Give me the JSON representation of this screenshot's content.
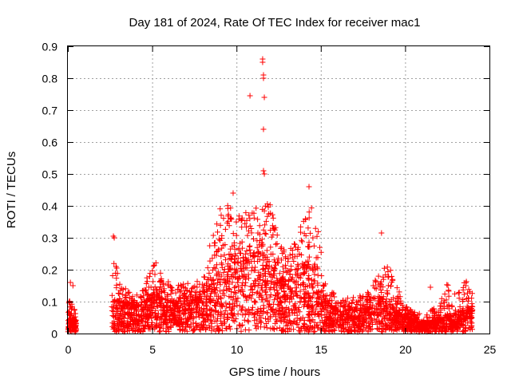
{
  "chart_data": {
    "type": "scatter",
    "title": "Day 181 of 2024, Rate Of TEC Index for receiver mac1",
    "xlabel": "GPS time / hours",
    "ylabel": "ROTI / TECUs",
    "xlim": [
      0,
      25
    ],
    "ylim": [
      0,
      0.9
    ],
    "xticks": [
      "0",
      "5",
      "10",
      "15",
      "20",
      "25"
    ],
    "yticks": [
      "0",
      "0.1",
      "0.2",
      "0.3",
      "0.4",
      "0.5",
      "0.6",
      "0.7",
      "0.8",
      "0.9"
    ],
    "grid": true,
    "marker": "plus",
    "series_color": "#ff0000",
    "notable_points": [
      {
        "x": 11.55,
        "y": 0.86
      },
      {
        "x": 11.55,
        "y": 0.85
      },
      {
        "x": 11.6,
        "y": 0.81
      },
      {
        "x": 11.6,
        "y": 0.8
      },
      {
        "x": 11.65,
        "y": 0.74
      },
      {
        "x": 10.8,
        "y": 0.745
      },
      {
        "x": 11.6,
        "y": 0.64
      },
      {
        "x": 11.6,
        "y": 0.51
      },
      {
        "x": 11.65,
        "y": 0.5
      },
      {
        "x": 14.3,
        "y": 0.46
      },
      {
        "x": 9.8,
        "y": 0.44
      },
      {
        "x": 18.6,
        "y": 0.315
      },
      {
        "x": 2.7,
        "y": 0.305
      },
      {
        "x": 2.75,
        "y": 0.3
      },
      {
        "x": 0.15,
        "y": 0.16
      },
      {
        "x": 0.3,
        "y": 0.15
      },
      {
        "x": 21.5,
        "y": 0.145
      }
    ],
    "envelope": {
      "x": [
        0,
        0.1,
        0.2,
        0.4,
        0.5,
        2.6,
        2.7,
        3.0,
        3.5,
        4.0,
        4.5,
        5.0,
        5.5,
        6.0,
        6.5,
        7.0,
        7.5,
        8.0,
        8.5,
        9.0,
        9.5,
        10.0,
        10.5,
        11.0,
        11.5,
        12.0,
        12.5,
        13.0,
        13.5,
        14.0,
        14.5,
        15.0,
        15.5,
        16.0,
        16.5,
        17.0,
        17.5,
        18.0,
        18.5,
        19.0,
        19.5,
        20.0,
        20.5,
        21.0,
        21.5,
        22.0,
        22.5,
        23.0,
        23.5,
        24.0
      ],
      "max": [
        0.06,
        0.12,
        0.1,
        0.08,
        0.05,
        0.12,
        0.3,
        0.17,
        0.14,
        0.12,
        0.14,
        0.25,
        0.2,
        0.17,
        0.15,
        0.17,
        0.16,
        0.19,
        0.33,
        0.4,
        0.42,
        0.36,
        0.42,
        0.39,
        0.4,
        0.41,
        0.3,
        0.26,
        0.3,
        0.36,
        0.41,
        0.28,
        0.15,
        0.11,
        0.11,
        0.12,
        0.12,
        0.15,
        0.22,
        0.24,
        0.15,
        0.09,
        0.07,
        0.06,
        0.07,
        0.1,
        0.16,
        0.12,
        0.17,
        0.16
      ],
      "dense": [
        0.03,
        0.06,
        0.05,
        0.04,
        0.03,
        0.07,
        0.1,
        0.1,
        0.09,
        0.08,
        0.09,
        0.12,
        0.11,
        0.1,
        0.09,
        0.1,
        0.1,
        0.11,
        0.15,
        0.2,
        0.24,
        0.22,
        0.26,
        0.24,
        0.25,
        0.22,
        0.17,
        0.16,
        0.18,
        0.21,
        0.2,
        0.13,
        0.08,
        0.07,
        0.07,
        0.07,
        0.07,
        0.08,
        0.11,
        0.1,
        0.07,
        0.05,
        0.04,
        0.03,
        0.03,
        0.04,
        0.06,
        0.06,
        0.07,
        0.07
      ]
    },
    "gaps": [
      [
        0.5,
        2.6
      ],
      [
        24.0,
        25.0
      ]
    ]
  }
}
